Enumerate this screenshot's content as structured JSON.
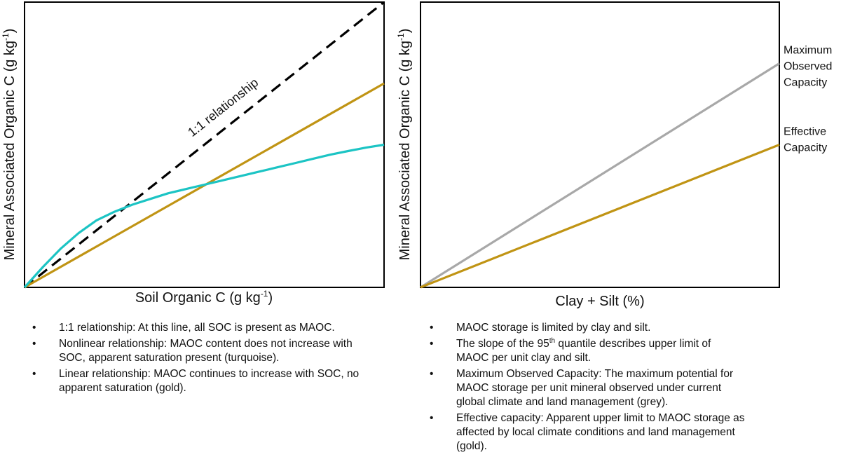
{
  "colors": {
    "dashed": "#000000",
    "gold": "#c09414",
    "turquoise": "#1cc4c4",
    "grey": "#a8a8a8",
    "axis": "#000000"
  },
  "chart_data": [
    {
      "type": "line",
      "ylabel": "Mineral Associated Organic C (g kg-1)",
      "ylabel_base": "Mineral Associated Organic C (g kg",
      "ylabel_sup": "-1",
      "ylabel_tail": ")",
      "xlabel": "Soil Organic C (g kg-1)",
      "xlabel_base": "Soil Organic C (g kg",
      "xlabel_sup": "-1",
      "xlabel_tail": ")",
      "xlim": [
        0,
        1
      ],
      "ylim": [
        0,
        1
      ],
      "annotation": "1:1 relationship",
      "series": [
        {
          "name": "1:1 relationship",
          "color": "#000000",
          "dashed": true,
          "x": [
            0,
            1
          ],
          "y": [
            0,
            1
          ]
        },
        {
          "name": "Linear relationship (gold)",
          "color": "#c09414",
          "x": [
            0,
            1
          ],
          "y": [
            0,
            0.715
          ]
        },
        {
          "name": "Nonlinear relationship (turquoise)",
          "color": "#1cc4c4",
          "x": [
            0,
            0.05,
            0.1,
            0.15,
            0.2,
            0.25,
            0.3,
            0.35,
            0.4,
            0.45,
            0.5,
            0.55,
            0.6,
            0.65,
            0.7,
            0.75,
            0.8,
            0.85,
            0.9,
            0.95,
            1.0
          ],
          "y": [
            0,
            0.07,
            0.135,
            0.19,
            0.235,
            0.265,
            0.29,
            0.31,
            0.33,
            0.345,
            0.36,
            0.375,
            0.39,
            0.405,
            0.42,
            0.435,
            0.45,
            0.465,
            0.478,
            0.49,
            0.5
          ]
        }
      ]
    },
    {
      "type": "line",
      "ylabel": "Mineral Associated Organic C (g kg-1)",
      "ylabel_base": "Mineral Associated Organic C (g kg",
      "ylabel_sup": "-1",
      "ylabel_tail": ")",
      "xlabel": "Clay + Silt (%)",
      "xlim": [
        0,
        1
      ],
      "ylim": [
        0,
        1
      ],
      "series": [
        {
          "name": "Maximum Observed Capacity",
          "label_lines": [
            "Maximum",
            "Observed",
            "Capacity"
          ],
          "color": "#a8a8a8",
          "x": [
            0,
            1
          ],
          "y": [
            0,
            0.785
          ]
        },
        {
          "name": "Effective Capacity",
          "label_lines": [
            "Effective",
            "Capacity"
          ],
          "color": "#c09414",
          "x": [
            0,
            1
          ],
          "y": [
            0,
            0.5
          ]
        }
      ]
    }
  ],
  "notes_left": [
    {
      "text": "1:1 relationship: At this line, all SOC is present as MAOC."
    },
    {
      "text": "Nonlinear relationship: MAOC content does not increase with SOC, apparent saturation present (turquoise)."
    },
    {
      "text": "Linear relationship: MAOC continues to increase with SOC, no apparent saturation (gold)."
    }
  ],
  "notes_right": [
    {
      "text": "MAOC storage is limited by clay and silt."
    },
    {
      "pre": "The slope of the 95",
      "sup": "th",
      "post": " quantile describes upper limit of MAOC per unit clay and silt."
    },
    {
      "text": "Maximum Observed Capacity: The maximum potential for MAOC storage per unit mineral observed under current global climate and land management (grey)."
    },
    {
      "text": "Effective capacity: Apparent upper limit to MAOC storage as affected by local climate conditions and land management (gold)."
    }
  ]
}
